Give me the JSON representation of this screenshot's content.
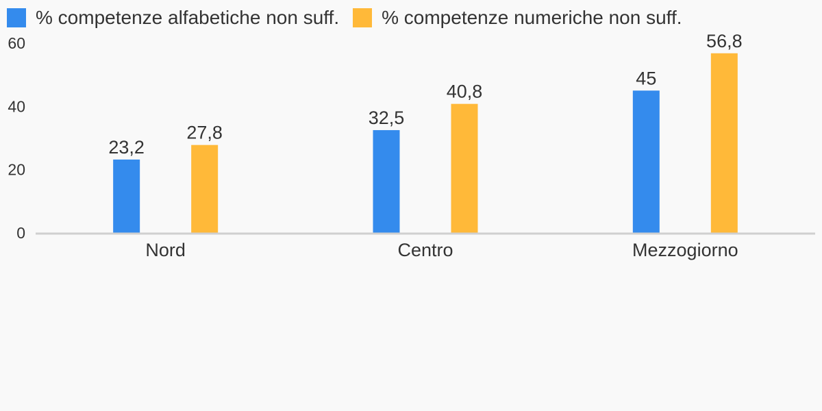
{
  "chart_data": {
    "type": "bar",
    "categories": [
      "Nord",
      "Centro",
      "Mezzogiorno"
    ],
    "series": [
      {
        "name": "% competenze alfabetiche non suff.",
        "color": "#348bed",
        "values": [
          23.2,
          32.5,
          45
        ],
        "labels": [
          "23,2",
          "32,5",
          "45"
        ]
      },
      {
        "name": "% competenze numeriche non suff.",
        "color": "#ffb939",
        "values": [
          27.8,
          40.8,
          56.8
        ],
        "labels": [
          "27,8",
          "40,8",
          "56,8"
        ]
      }
    ],
    "yticks": [
      0,
      20,
      40,
      60
    ],
    "ylim": [
      0,
      60
    ],
    "legend_position": "top-left",
    "grid": false
  }
}
